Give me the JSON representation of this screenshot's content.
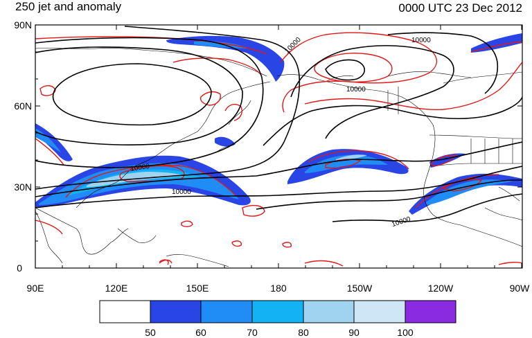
{
  "header": {
    "left_title": "250 jet and anomaly",
    "right_title": "0000 UTC 23 Dec 2012"
  },
  "lat_labels": [
    "90N",
    "60N",
    "30N",
    "0"
  ],
  "lon_labels": [
    "90E",
    "120E",
    "150E",
    "180",
    "150W",
    "120W",
    "90W"
  ],
  "contour_labels": [
    "10000",
    "10000",
    "10000",
    "10000",
    "10000",
    "10000"
  ],
  "colorbar": {
    "labels": [
      "50",
      "60",
      "70",
      "80",
      "90",
      "100"
    ],
    "colors": [
      "#ffffff",
      "#2a45e6",
      "#1f8df5",
      "#12b3f5",
      "#a0d3f0",
      "#cde7f6",
      "#8a2be2"
    ]
  },
  "colors": {
    "jet_shading": "#2a45e6",
    "anomaly_contour": "#e01818",
    "height_contour": "#000000",
    "coastline": "#000000"
  }
}
